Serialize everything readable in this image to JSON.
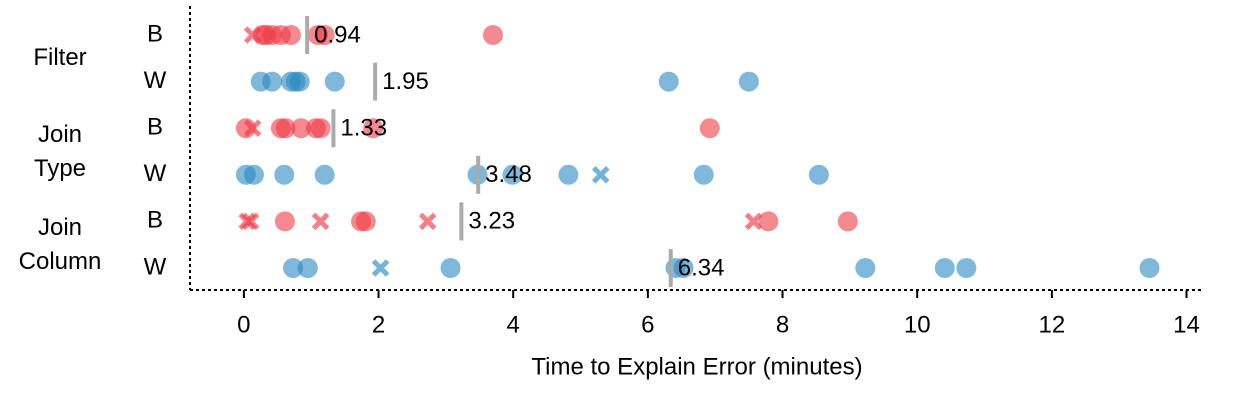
{
  "chart_data": {
    "type": "strip",
    "xlabel": "Time to Explain Error (minutes)",
    "xlim": [
      -0.8,
      14.2
    ],
    "xticks": [
      0,
      2,
      4,
      6,
      8,
      10,
      12,
      14
    ],
    "groups": [
      {
        "name": "Filter",
        "rows": [
          {
            "label": "B",
            "color": "#ee3b46",
            "median": 0.94,
            "x": [
              0.13,
              0.28,
              0.33,
              0.42,
              0.55,
              0.7,
              1.1,
              1.2,
              3.7
            ],
            "markers": [
              "x",
              "o",
              "o",
              "o",
              "o",
              "o",
              "o",
              "o",
              "o"
            ]
          },
          {
            "label": "W",
            "color": "#2a88c2",
            "median": 1.95,
            "x": [
              0.25,
              0.42,
              0.7,
              0.77,
              0.83,
              1.35,
              6.31,
              7.5
            ],
            "markers": [
              "o",
              "o",
              "o",
              "o",
              "o",
              "o",
              "o",
              "o"
            ]
          }
        ]
      },
      {
        "name": "Join Type",
        "rows": [
          {
            "label": "B",
            "color": "#ee3b46",
            "median": 1.33,
            "x": [
              0.03,
              0.13,
              0.55,
              0.62,
              0.85,
              1.07,
              1.14,
              1.92,
              6.92
            ],
            "markers": [
              "o",
              "x",
              "o",
              "o",
              "o",
              "o",
              "o",
              "o",
              "o"
            ]
          },
          {
            "label": "W",
            "color": "#2a88c2",
            "median": 3.48,
            "x": [
              0.03,
              0.15,
              0.6,
              1.2,
              3.47,
              3.99,
              4.82,
              5.3,
              6.83,
              8.54
            ],
            "markers": [
              "o",
              "o",
              "o",
              "o",
              "o",
              "o",
              "o",
              "x",
              "o",
              "o"
            ]
          }
        ]
      },
      {
        "name": "Join Column",
        "rows": [
          {
            "label": "B",
            "color": "#ee3b46",
            "median": 3.23,
            "x": [
              0.05,
              0.1,
              0.61,
              1.14,
              1.74,
              1.81,
              2.73,
              7.57,
              7.79,
              8.97
            ],
            "markers": [
              "x",
              "x",
              "o",
              "x",
              "o",
              "o",
              "x",
              "x",
              "o",
              "o"
            ]
          },
          {
            "label": "W",
            "color": "#2a88c2",
            "median": 6.34,
            "x": [
              0.73,
              0.95,
              2.03,
              3.07,
              6.41,
              6.53,
              9.23,
              10.41,
              10.73,
              13.45
            ],
            "markers": [
              "o",
              "o",
              "x",
              "o",
              "o",
              "o",
              "o",
              "o",
              "o",
              "o"
            ]
          }
        ]
      }
    ]
  }
}
